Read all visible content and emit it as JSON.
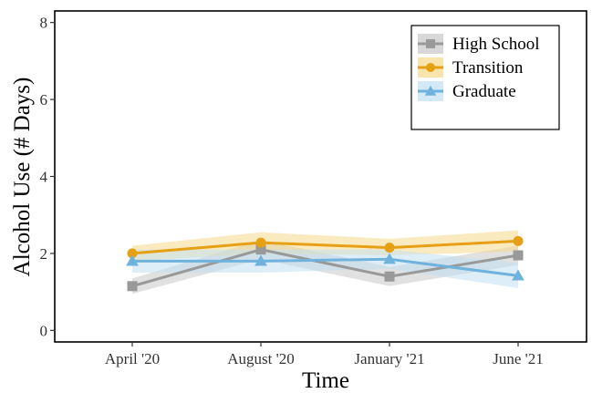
{
  "chart_data": {
    "type": "line",
    "title": "",
    "xlabel": "Time",
    "ylabel": "Alcohol Use (# Days)",
    "categories": [
      "April '20",
      "August '20",
      "January '21",
      "June '21"
    ],
    "y_ticks": [
      "0",
      "2",
      "4",
      "6",
      "8"
    ],
    "ylim": [
      -0.3,
      8.3
    ],
    "grid": false,
    "legend_position": "top-right",
    "series": [
      {
        "name": "High School",
        "marker": "square",
        "color": "#999999",
        "band_color": "#c8c8c8",
        "values": [
          1.15,
          2.1,
          1.4,
          1.95
        ],
        "ci_lower": [
          0.95,
          1.85,
          1.15,
          1.7
        ],
        "ci_upper": [
          1.35,
          2.35,
          1.65,
          2.2
        ]
      },
      {
        "name": "Transition",
        "marker": "circle",
        "color": "#E6A015",
        "band_color": "#f6d98a",
        "values": [
          2.0,
          2.28,
          2.15,
          2.32
        ],
        "ci_lower": [
          1.8,
          2.0,
          1.95,
          2.05
        ],
        "ci_upper": [
          2.2,
          2.55,
          2.38,
          2.6
        ]
      },
      {
        "name": "Graduate",
        "marker": "triangle",
        "color": "#6FB3DD",
        "band_color": "#c2e0f2",
        "values": [
          1.8,
          1.8,
          1.85,
          1.42
        ],
        "ci_lower": [
          1.5,
          1.5,
          1.6,
          1.1
        ],
        "ci_upper": [
          2.1,
          2.1,
          2.1,
          1.75
        ]
      }
    ]
  }
}
